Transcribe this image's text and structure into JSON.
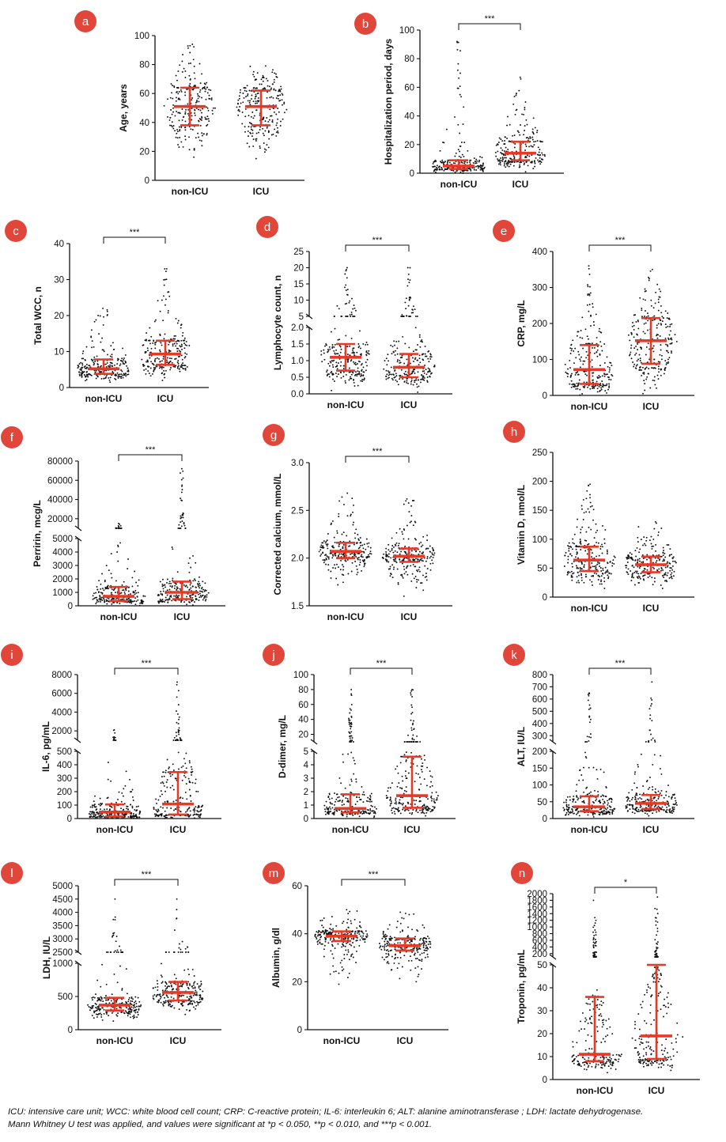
{
  "colors": {
    "badge": "#e0463a",
    "median_bar": "#e63a26",
    "dots": "#111111",
    "axis": "#111111"
  },
  "chart_data": [
    {
      "panel": "a",
      "type": "scatter",
      "ylabel": "Age, years",
      "categories": [
        "non-ICU",
        "ICU"
      ],
      "yticks": [
        "0",
        "20",
        "40",
        "60",
        "80",
        "100"
      ],
      "ylim": [
        0,
        100
      ],
      "significance": "",
      "series": [
        {
          "category": "non-ICU",
          "median": 51,
          "q1": 38,
          "q3": 64,
          "min": 16,
          "max": 94
        },
        {
          "category": "ICU",
          "median": 51,
          "q1": 38,
          "q3": 62,
          "min": 15,
          "max": 79
        }
      ]
    },
    {
      "panel": "b",
      "type": "scatter",
      "ylabel": "Hospitalization period, days",
      "categories": [
        "non-ICU",
        "ICU"
      ],
      "yticks": [
        "0",
        "20",
        "40",
        "60",
        "80",
        "100"
      ],
      "ylim": [
        0,
        100
      ],
      "significance": "***",
      "series": [
        {
          "category": "non-ICU",
          "median": 5,
          "q1": 3,
          "q3": 9,
          "min": 0,
          "max": 92
        },
        {
          "category": "ICU",
          "median": 14,
          "q1": 9,
          "q3": 22,
          "min": 1,
          "max": 67
        }
      ]
    },
    {
      "panel": "c",
      "type": "scatter",
      "ylabel": "Total WCC, n",
      "categories": [
        "non-ICU",
        "ICU"
      ],
      "yticks": [
        "0",
        "10",
        "20",
        "30",
        "40"
      ],
      "ylim": [
        0,
        40
      ],
      "significance": "***",
      "series": [
        {
          "category": "non-ICU",
          "median": 5.2,
          "q1": 3.8,
          "q3": 7.8,
          "min": 1.5,
          "max": 22
        },
        {
          "category": "ICU",
          "median": 9.3,
          "q1": 6.3,
          "q3": 13,
          "min": 2,
          "max": 33
        }
      ]
    },
    {
      "panel": "d",
      "type": "scatter",
      "ylabel": "Lymphocyte count, n",
      "categories": [
        "non-ICU",
        "ICU"
      ],
      "yticks": [
        "0.0",
        "0.5",
        "1.0",
        "1.5",
        "2.0",
        "5",
        "10",
        "15",
        "20",
        "25"
      ],
      "ylim": [
        0,
        25
      ],
      "axis_break": [
        2,
        5
      ],
      "significance": "***",
      "series": [
        {
          "category": "non-ICU",
          "median": 1.1,
          "q1": 0.7,
          "q3": 1.5,
          "min": 0.1,
          "max": 20
        },
        {
          "category": "ICU",
          "median": 0.8,
          "q1": 0.5,
          "q3": 1.2,
          "min": 0.05,
          "max": 20
        }
      ]
    },
    {
      "panel": "e",
      "type": "scatter",
      "ylabel": "CRP, mg/L",
      "categories": [
        "non-ICU",
        "ICU"
      ],
      "yticks": [
        "0",
        "100",
        "200",
        "300",
        "400"
      ],
      "ylim": [
        0,
        400
      ],
      "significance": "***",
      "series": [
        {
          "category": "non-ICU",
          "median": 72,
          "q1": 32,
          "q3": 140,
          "min": 1,
          "max": 360
        },
        {
          "category": "ICU",
          "median": 152,
          "q1": 88,
          "q3": 215,
          "min": 5,
          "max": 350
        }
      ]
    },
    {
      "panel": "f",
      "type": "scatter",
      "ylabel": "Perririn, mcg/L",
      "categories": [
        "non-ICU",
        "ICU"
      ],
      "yticks": [
        "0",
        "1000",
        "2000",
        "3000",
        "4000",
        "5000",
        "20000",
        "40000",
        "60000",
        "80000"
      ],
      "ylim": [
        0,
        80000
      ],
      "axis_break": [
        5000,
        10000
      ],
      "significance": "***",
      "series": [
        {
          "category": "non-ICU",
          "median": 700,
          "q1": 350,
          "q3": 1400,
          "min": 20,
          "max": 15000
        },
        {
          "category": "ICU",
          "median": 1000,
          "q1": 500,
          "q3": 1800,
          "min": 50,
          "max": 72000
        }
      ]
    },
    {
      "panel": "g",
      "type": "scatter",
      "ylabel": "Corrected calcium, mmol/L",
      "categories": [
        "non-ICU",
        "ICU"
      ],
      "yticks": [
        "1.5",
        "2.0",
        "2.5",
        "3.0"
      ],
      "ylim": [
        1.5,
        3.0
      ],
      "significance": "***",
      "series": [
        {
          "category": "non-ICU",
          "median": 2.07,
          "q1": 2.0,
          "q3": 2.16,
          "min": 1.72,
          "max": 2.68
        },
        {
          "category": "ICU",
          "median": 2.02,
          "q1": 1.96,
          "q3": 2.1,
          "min": 1.6,
          "max": 2.62
        }
      ]
    },
    {
      "panel": "h",
      "type": "scatter",
      "ylabel": "Vitamin D, nmol/L",
      "categories": [
        "non-ICU",
        "ICU"
      ],
      "yticks": [
        "0",
        "50",
        "100",
        "150",
        "200",
        "250"
      ],
      "ylim": [
        0,
        250
      ],
      "significance": "",
      "series": [
        {
          "category": "non-ICU",
          "median": 64,
          "q1": 45,
          "q3": 87,
          "min": 15,
          "max": 195
        },
        {
          "category": "ICU",
          "median": 56,
          "q1": 43,
          "q3": 70,
          "min": 15,
          "max": 130
        }
      ]
    },
    {
      "panel": "i",
      "type": "scatter",
      "ylabel": "IL-6, pg/mL",
      "categories": [
        "non-ICU",
        "ICU"
      ],
      "yticks": [
        "0",
        "100",
        "200",
        "300",
        "400",
        "500",
        "2000",
        "4000",
        "6000",
        "8000"
      ],
      "ylim": [
        0,
        8000
      ],
      "axis_break": [
        500,
        1000
      ],
      "significance": "***",
      "series": [
        {
          "category": "non-ICU",
          "median": 48,
          "q1": 15,
          "q3": 105,
          "min": 1,
          "max": 2100
        },
        {
          "category": "ICU",
          "median": 108,
          "q1": 30,
          "q3": 345,
          "min": 2,
          "max": 7200
        }
      ]
    },
    {
      "panel": "j",
      "type": "scatter",
      "ylabel": "D-dimer, mg/L",
      "categories": [
        "non-ICU",
        "ICU"
      ],
      "yticks": [
        "0",
        "1",
        "2",
        "3",
        "4",
        "5",
        "20",
        "40",
        "60",
        "80",
        "100"
      ],
      "ylim": [
        0,
        100
      ],
      "axis_break": [
        5,
        10
      ],
      "significance": "***",
      "series": [
        {
          "category": "non-ICU",
          "median": 0.75,
          "q1": 0.45,
          "q3": 1.8,
          "min": 0.1,
          "max": 80
        },
        {
          "category": "ICU",
          "median": 1.7,
          "q1": 0.8,
          "q3": 4.6,
          "min": 0.2,
          "max": 80
        }
      ]
    },
    {
      "panel": "k",
      "type": "scatter",
      "ylabel": "ALT, IU/L",
      "categories": [
        "non-ICU",
        "ICU"
      ],
      "yticks": [
        "0",
        "50",
        "100",
        "150",
        "200",
        "300",
        "400",
        "500",
        "600",
        "700",
        "800"
      ],
      "ylim": [
        0,
        800
      ],
      "axis_break": [
        200,
        250
      ],
      "significance": "***",
      "series": [
        {
          "category": "non-ICU",
          "median": 35,
          "q1": 22,
          "q3": 66,
          "min": 5,
          "max": 650
        },
        {
          "category": "ICU",
          "median": 45,
          "q1": 28,
          "q3": 70,
          "min": 8,
          "max": 740
        }
      ]
    },
    {
      "panel": "l",
      "type": "scatter",
      "ylabel": "LDH, IU/L",
      "categories": [
        "non-ICU",
        "ICU"
      ],
      "yticks": [
        "0",
        "500",
        "1000",
        "2500",
        "3000",
        "3500",
        "4000",
        "4500",
        "5000"
      ],
      "ylim": [
        0,
        5000
      ],
      "axis_break": [
        1000,
        2500
      ],
      "significance": "***",
      "series": [
        {
          "category": "non-ICU",
          "median": 370,
          "q1": 290,
          "q3": 480,
          "min": 130,
          "max": 4500
        },
        {
          "category": "ICU",
          "median": 560,
          "q1": 440,
          "q3": 720,
          "min": 230,
          "max": 4500
        }
      ]
    },
    {
      "panel": "m",
      "type": "scatter",
      "ylabel": "Albumin, g/dl",
      "categories": [
        "non-ICU",
        "ICU"
      ],
      "yticks": [
        "0",
        "20",
        "40",
        "60"
      ],
      "ylim": [
        0,
        60
      ],
      "significance": "***",
      "series": [
        {
          "category": "non-ICU",
          "median": 39,
          "q1": 37,
          "q3": 41,
          "min": 19,
          "max": 50
        },
        {
          "category": "ICU",
          "median": 35,
          "q1": 33,
          "q3": 38,
          "min": 20,
          "max": 49
        }
      ]
    },
    {
      "panel": "n",
      "type": "scatter",
      "ylabel": "Troponin, pg/mL",
      "categories": [
        "non-ICU",
        "ICU"
      ],
      "yticks": [
        "0",
        "10",
        "20",
        "30",
        "40",
        "50",
        "200",
        "400",
        "600",
        "800",
        "1000",
        "1200",
        "1400",
        "1600",
        "1800",
        "2000"
      ],
      "ylim": [
        0,
        2000
      ],
      "axis_break": [
        50,
        100
      ],
      "significance": "*",
      "series": [
        {
          "category": "non-ICU",
          "median": 11,
          "q1": 8,
          "q3": 36,
          "min": 3,
          "max": 1800
        },
        {
          "category": "ICU",
          "median": 19,
          "q1": 9,
          "q3": 50,
          "min": 4,
          "max": 1900
        }
      ]
    }
  ],
  "caption": {
    "line1": "ICU: intensive care unit; WCC: white blood cell count; CRP: C-reactive protein; IL-6: interleukin 6; ALT: alanine aminotransferase ; LDH: lactate dehydrogenase.",
    "line2": "Mann Whitney U test was applied, and values were significant at *p < 0.050, **p < 0.010, and ***p < 0.001."
  }
}
